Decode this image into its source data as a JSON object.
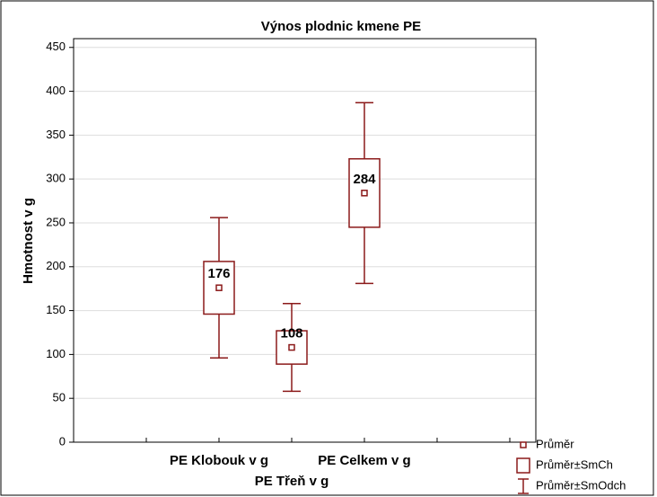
{
  "chart_data": {
    "type": "box",
    "title": "Výnos plodnic kmene PE",
    "y_label": "Hmotnost v g",
    "categories": [
      "PE Klobouk v g",
      "PE Třeň v g",
      "PE Celkem v g"
    ],
    "series": [
      {
        "name": "Průměr",
        "color": "#8b1a1a",
        "values": [
          176,
          108,
          284
        ]
      },
      {
        "name": "Průměr±SmCh",
        "color": "#8b1a1a",
        "values": [
          30,
          19,
          39
        ]
      },
      {
        "name": "Průměr±SmOdch",
        "color": "#8b1a1a",
        "values": [
          80,
          50,
          103
        ]
      }
    ],
    "ylim": [
      0,
      460
    ],
    "yticks": [
      0,
      50,
      100,
      150,
      200,
      250,
      300,
      350,
      400,
      450
    ],
    "grid": true
  }
}
